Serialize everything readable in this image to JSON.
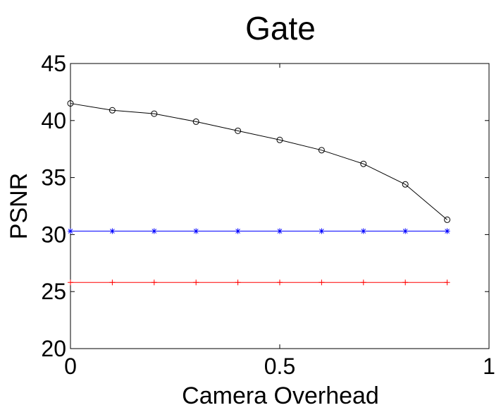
{
  "chart_data": {
    "type": "line",
    "title": "Gate",
    "xlabel": "Camera Overhead",
    "ylabel": "PSNR",
    "xlim": [
      0,
      1
    ],
    "ylim": [
      20,
      45
    ],
    "xticks": [
      "0",
      "0.5",
      "1"
    ],
    "yticks": [
      "20",
      "25",
      "30",
      "35",
      "40",
      "45"
    ],
    "grid": false,
    "legend": "none",
    "x": [
      0,
      0.1,
      0.2,
      0.3,
      0.4,
      0.5,
      0.6,
      0.7,
      0.8,
      0.9
    ],
    "series": [
      {
        "color": "#000000",
        "marker": "circle",
        "values": [
          41.5,
          40.9,
          40.6,
          39.9,
          39.1,
          38.3,
          37.4,
          36.2,
          34.4,
          31.3
        ]
      },
      {
        "color": "#0000ff",
        "marker": "asterisk",
        "values": [
          30.3,
          30.3,
          30.3,
          30.3,
          30.3,
          30.3,
          30.3,
          30.3,
          30.3,
          30.3
        ]
      },
      {
        "color": "#ff0000",
        "marker": "plus",
        "values": [
          25.8,
          25.8,
          25.8,
          25.8,
          25.8,
          25.8,
          25.8,
          25.8,
          25.8,
          25.8
        ]
      }
    ]
  }
}
